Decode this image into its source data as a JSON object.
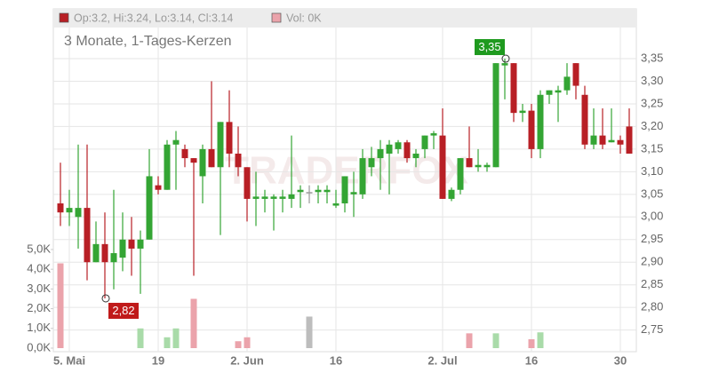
{
  "chart_data": {
    "type": "candlestick",
    "subtitle": "3 Monate, 1-Tages-Kerzen",
    "watermark": "TRADERFOX",
    "legend": {
      "price": "Op:3.2, Hi:3.24, Lo:3.14, Cl:3.14",
      "volume": "Vol: 0K"
    },
    "categories": [
      null,
      "5. Mai",
      null,
      null,
      null,
      null,
      null,
      null,
      null,
      null,
      null,
      "19",
      null,
      null,
      null,
      null,
      null,
      null,
      null,
      null,
      null,
      "2. Jun",
      null,
      null,
      null,
      null,
      null,
      null,
      null,
      null,
      null,
      "16",
      null,
      null,
      null,
      null,
      null,
      null,
      null,
      null,
      null,
      null,
      null,
      "2. Jul",
      null,
      null,
      null,
      null,
      null,
      null,
      null,
      null,
      null,
      "16",
      null,
      null,
      null,
      null,
      null,
      null,
      null,
      null,
      null,
      "30",
      null
    ],
    "ohlc": [
      [
        3.03,
        3.12,
        2.98,
        3.01
      ],
      [
        3.01,
        3.06,
        2.98,
        3.02
      ],
      [
        3.0,
        3.16,
        2.93,
        3.02
      ],
      [
        3.02,
        3.16,
        2.86,
        2.9
      ],
      [
        2.9,
        2.99,
        2.9,
        2.94
      ],
      [
        2.94,
        3.01,
        2.82,
        2.9
      ],
      [
        2.9,
        3.06,
        2.84,
        2.92
      ],
      [
        2.91,
        3.01,
        2.88,
        2.95
      ],
      [
        2.95,
        3.0,
        2.87,
        2.93
      ],
      [
        2.93,
        2.97,
        2.83,
        2.95
      ],
      [
        2.95,
        3.15,
        2.95,
        3.09
      ],
      [
        3.07,
        3.09,
        3.05,
        3.06
      ],
      [
        3.06,
        3.17,
        3.06,
        3.16
      ],
      [
        3.16,
        3.19,
        3.06,
        3.17
      ],
      [
        3.15,
        3.16,
        3.11,
        3.13
      ],
      [
        3.13,
        3.13,
        2.87,
        3.12
      ],
      [
        3.09,
        3.16,
        3.03,
        3.15
      ],
      [
        3.15,
        3.3,
        3.11,
        3.11
      ],
      [
        3.11,
        3.21,
        2.96,
        3.21
      ],
      [
        3.21,
        3.28,
        3.11,
        3.14
      ],
      [
        3.14,
        3.2,
        3.09,
        3.11
      ],
      [
        3.11,
        3.11,
        2.99,
        3.04
      ],
      [
        3.04,
        3.1,
        2.98,
        3.045
      ],
      [
        3.04,
        3.06,
        3.01,
        3.045
      ],
      [
        3.04,
        3.05,
        2.97,
        3.045
      ],
      [
        3.04,
        3.06,
        3.01,
        3.045
      ],
      [
        3.04,
        3.18,
        3.02,
        3.05
      ],
      [
        3.055,
        3.07,
        3.02,
        3.06
      ],
      [
        3.055,
        3.07,
        3.03,
        3.055
      ],
      [
        3.055,
        3.07,
        3.03,
        3.06
      ],
      [
        3.055,
        3.07,
        3.03,
        3.06
      ],
      [
        3.025,
        3.06,
        3.02,
        3.03
      ],
      [
        3.03,
        3.09,
        3.01,
        3.09
      ],
      [
        3.05,
        3.1,
        3.0,
        3.055
      ],
      [
        3.05,
        3.15,
        3.04,
        3.13
      ],
      [
        3.11,
        3.155,
        3.09,
        3.13
      ],
      [
        3.13,
        3.17,
        3.06,
        3.15
      ],
      [
        3.14,
        3.17,
        3.05,
        3.16
      ],
      [
        3.15,
        3.17,
        3.14,
        3.165
      ],
      [
        3.165,
        3.17,
        3.12,
        3.13
      ],
      [
        3.13,
        3.15,
        3.11,
        3.14
      ],
      [
        3.15,
        3.18,
        3.13,
        3.18
      ],
      [
        3.18,
        3.19,
        3.15,
        3.185
      ],
      [
        3.18,
        3.24,
        3.04,
        3.04
      ],
      [
        3.04,
        3.065,
        3.035,
        3.06
      ],
      [
        3.06,
        3.13,
        3.05,
        3.13
      ],
      [
        3.13,
        3.2,
        3.11,
        3.11
      ],
      [
        3.11,
        3.15,
        3.1,
        3.115
      ],
      [
        3.11,
        3.12,
        3.1,
        3.115
      ],
      [
        3.11,
        3.34,
        3.11,
        3.34
      ],
      [
        3.335,
        3.35,
        3.26,
        3.34
      ],
      [
        3.34,
        3.34,
        3.21,
        3.23
      ],
      [
        3.23,
        3.25,
        3.21,
        3.235
      ],
      [
        3.235,
        3.25,
        3.13,
        3.15
      ],
      [
        3.15,
        3.28,
        3.13,
        3.27
      ],
      [
        3.27,
        3.28,
        3.25,
        3.28
      ],
      [
        3.275,
        3.29,
        3.21,
        3.28
      ],
      [
        3.28,
        3.34,
        3.27,
        3.31
      ],
      [
        3.34,
        3.34,
        3.26,
        3.29
      ],
      [
        3.27,
        3.29,
        3.15,
        3.16
      ],
      [
        3.16,
        3.24,
        3.15,
        3.18
      ],
      [
        3.18,
        3.24,
        3.15,
        3.16
      ],
      [
        3.165,
        3.24,
        3.165,
        3.17
      ],
      [
        3.17,
        3.18,
        3.14,
        3.16
      ],
      [
        3.2,
        3.24,
        3.14,
        3.14
      ]
    ],
    "volume": [
      4300,
      0,
      0,
      0,
      0,
      0,
      0,
      0,
      0,
      1000,
      0,
      0,
      550,
      1000,
      0,
      2500,
      0,
      0,
      0,
      0,
      350,
      550,
      0,
      0,
      0,
      0,
      0,
      0,
      1600,
      0,
      0,
      0,
      0,
      0,
      0,
      0,
      0,
      0,
      0,
      0,
      0,
      0,
      0,
      0,
      0,
      0,
      750,
      0,
      0,
      750,
      0,
      0,
      0,
      450,
      800,
      0,
      0,
      0,
      0,
      0,
      0,
      0,
      0,
      0,
      0
    ],
    "colors": {
      "up": "#34a534",
      "down": "#b81f25",
      "flat": "#9a9a9a",
      "volume_up": "#a9dba9",
      "volume_down": "#eba3ab",
      "volume_flat": "#bdbdbd"
    },
    "ylim": [
      2.71,
      3.46
    ],
    "yticks": [
      {
        "value": 2.75,
        "label": "2,75"
      },
      {
        "value": 2.8,
        "label": "2,80"
      },
      {
        "value": 2.85,
        "label": "2,85"
      },
      {
        "value": 2.9,
        "label": "2,90"
      },
      {
        "value": 2.95,
        "label": "2,95"
      },
      {
        "value": 3.0,
        "label": "3,00"
      },
      {
        "value": 3.05,
        "label": "3,05"
      },
      {
        "value": 3.1,
        "label": "3,10"
      },
      {
        "value": 3.15,
        "label": "3,15"
      },
      {
        "value": 3.2,
        "label": "3,20"
      },
      {
        "value": 3.25,
        "label": "3,25"
      },
      {
        "value": 3.3,
        "label": "3,30"
      },
      {
        "value": 3.35,
        "label": "3,35"
      }
    ],
    "y2lim": [
      0,
      17200
    ],
    "y2ticks": [
      {
        "value": 0,
        "label": "0,0K"
      },
      {
        "value": 1000,
        "label": "1,0K"
      },
      {
        "value": 2000,
        "label": "2,0K"
      },
      {
        "value": 3000,
        "label": "3,0K"
      },
      {
        "value": 4000,
        "label": "4,0K"
      },
      {
        "value": 5000,
        "label": "5,0K"
      }
    ],
    "annotations": [
      {
        "index": 50,
        "value": 3.35,
        "label": "3,35",
        "kind": "high"
      },
      {
        "index": 5,
        "value": 2.82,
        "label": "2,82",
        "kind": "low"
      }
    ],
    "grid": true
  }
}
